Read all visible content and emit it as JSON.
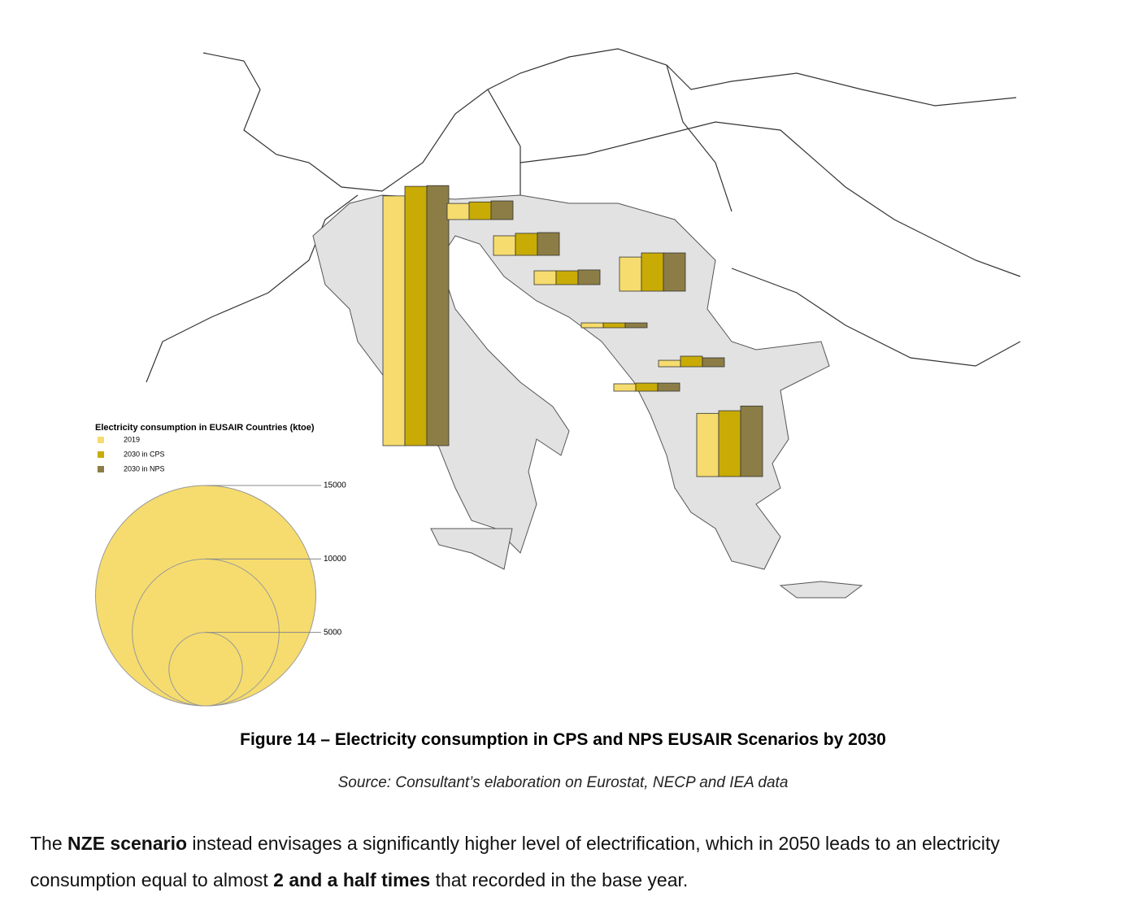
{
  "chart_data": {
    "type": "bar",
    "legend_title": "Electricity consumption in EUSAIR Countries (ktoe)",
    "series": [
      {
        "name": "2019",
        "color": "#f6dc6e",
        "values": [
          17000,
          1100,
          1330,
          940,
          2320,
          330,
          440,
          500,
          4300
        ]
      },
      {
        "name": "2030 in CPS",
        "color": "#c9ab06",
        "values": [
          17650,
          1200,
          1500,
          940,
          2600,
          330,
          720,
          550,
          4480
        ]
      },
      {
        "name": "2030 in NPS",
        "color": "#8b7d45",
        "values": [
          17700,
          1270,
          1550,
          1000,
          2600,
          330,
          610,
          550,
          4800
        ]
      }
    ],
    "size_legend": {
      "color": "#f6dc6e",
      "ticks": [
        5000,
        10000,
        15000
      ]
    }
  },
  "figure_caption": "Figure 14 – Electricity consumption in CPS and NPS EUSAIR Scenarios by 2030",
  "source": "Source: Consultant’s elaboration on Eurostat, NECP and IEA data",
  "paragraph": [
    {
      "text": "The "
    },
    {
      "text": "NZE scenario",
      "bold": true
    },
    {
      "text": " instead envisages a significantly higher level of electrification, which in 2050 leads to an electricity consumption equal to almost "
    },
    {
      "text": "2 and a half times",
      "bold": true
    },
    {
      "text": " that recorded in the base year."
    }
  ]
}
